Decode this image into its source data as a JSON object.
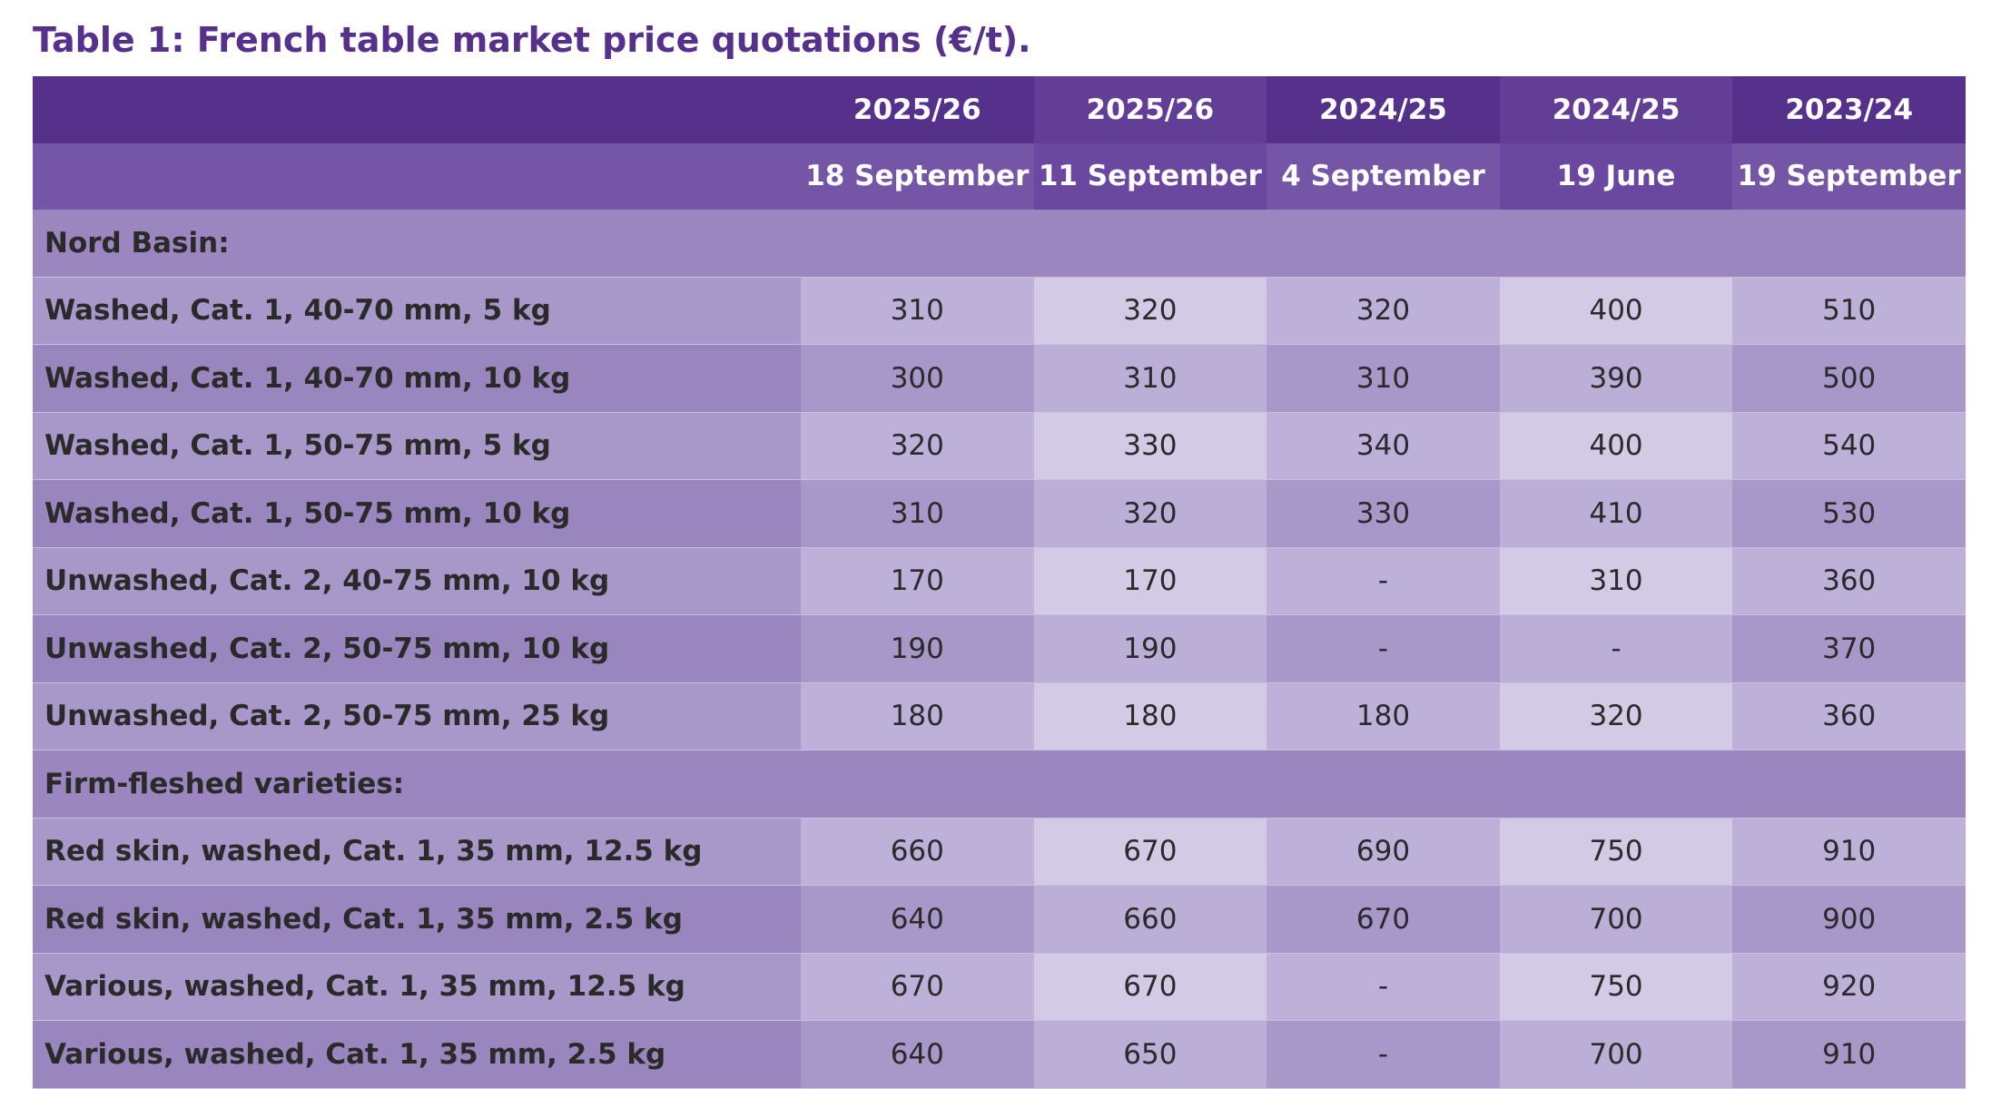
{
  "title": "Table 1: French table market price quotations (€/t).",
  "table": {
    "years": [
      "2025/26",
      "2025/26",
      "2024/25",
      "2024/25",
      "2023/24"
    ],
    "dates": [
      "18 September",
      "11 September",
      "4 September",
      "19 June",
      "19 September"
    ],
    "sections": [
      {
        "label": "Nord Basin:",
        "rows": [
          {
            "label": "Washed, Cat. 1, 40-70 mm, 5 kg",
            "values": [
              310,
              320,
              320,
              400,
              510
            ]
          },
          {
            "label": "Washed, Cat. 1, 40-70 mm, 10 kg",
            "values": [
              300,
              310,
              310,
              390,
              500
            ]
          },
          {
            "label": "Washed, Cat. 1, 50-75 mm, 5 kg",
            "values": [
              320,
              330,
              340,
              400,
              540
            ]
          },
          {
            "label": "Washed, Cat. 1, 50-75 mm, 10 kg",
            "values": [
              310,
              320,
              330,
              410,
              530
            ]
          },
          {
            "label": "Unwashed, Cat. 2, 40-75 mm, 10 kg",
            "values": [
              170,
              170,
              "-",
              310,
              360
            ]
          },
          {
            "label": "Unwashed, Cat. 2, 50-75 mm, 10 kg",
            "values": [
              190,
              190,
              "-",
              "-",
              370
            ]
          },
          {
            "label": "Unwashed, Cat. 2, 50-75 mm, 25 kg",
            "values": [
              180,
              180,
              180,
              320,
              360
            ]
          }
        ]
      },
      {
        "label": "Firm-fleshed varieties:",
        "rows": [
          {
            "label": "Red skin, washed, Cat. 1, 35 mm, 12.5 kg",
            "values": [
              660,
              670,
              690,
              750,
              910
            ]
          },
          {
            "label": "Red skin, washed, Cat. 1, 35 mm, 2.5 kg",
            "values": [
              640,
              660,
              670,
              700,
              900
            ]
          },
          {
            "label": "Various, washed, Cat. 1, 35 mm, 12.5 kg",
            "values": [
              670,
              670,
              "-",
              750,
              920
            ]
          },
          {
            "label": "Various, washed, Cat. 1, 35 mm, 2.5 kg",
            "values": [
              640,
              650,
              "-",
              700,
              910
            ]
          }
        ]
      }
    ]
  }
}
